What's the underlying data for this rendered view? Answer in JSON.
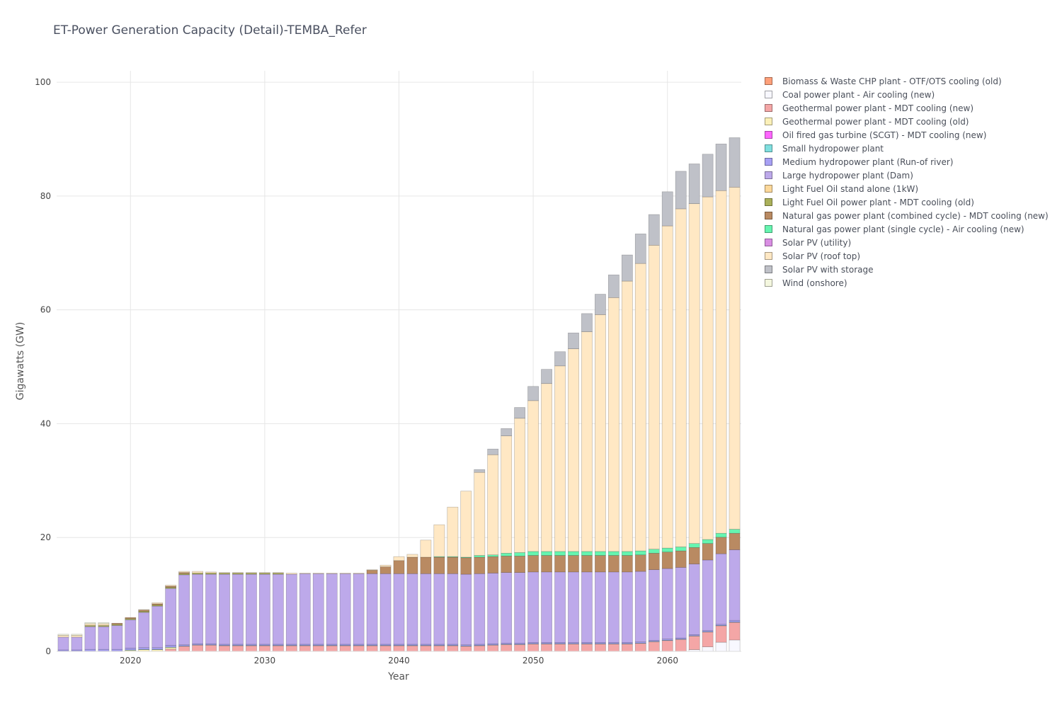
{
  "title": "ET-Power Generation Capacity (Detail)-TEMBA_Refer",
  "chart_data": {
    "type": "bar",
    "stacked": true,
    "title": "ET-Power Generation Capacity (Detail)-TEMBA_Refer",
    "xlabel": "Year",
    "ylabel": "Gigawatts (GW)",
    "xlim": [
      2014.5,
      2065.5
    ],
    "ylim": [
      0,
      102
    ],
    "x_ticks": [
      2020,
      2030,
      2040,
      2050,
      2060
    ],
    "y_ticks": [
      0,
      20,
      40,
      60,
      80,
      100
    ],
    "grid": true,
    "legend_position": "right",
    "years": [
      2015,
      2016,
      2017,
      2018,
      2019,
      2020,
      2021,
      2022,
      2023,
      2024,
      2025,
      2026,
      2027,
      2028,
      2029,
      2030,
      2031,
      2032,
      2033,
      2034,
      2035,
      2036,
      2037,
      2038,
      2039,
      2040,
      2041,
      2042,
      2043,
      2044,
      2045,
      2046,
      2047,
      2048,
      2049,
      2050,
      2051,
      2052,
      2053,
      2054,
      2055,
      2056,
      2057,
      2058,
      2059,
      2060,
      2061,
      2062,
      2063,
      2064,
      2065
    ],
    "series": [
      {
        "name": "Biomass & Waste CHP plant - OTF/OTS cooling (old)",
        "color": "#ffa07a",
        "values": [
          0,
          0,
          0,
          0,
          0,
          0,
          0,
          0,
          0,
          0,
          0,
          0,
          0,
          0,
          0,
          0,
          0,
          0,
          0,
          0,
          0,
          0,
          0,
          0,
          0,
          0,
          0,
          0,
          0,
          0,
          0,
          0,
          0,
          0,
          0,
          0,
          0,
          0,
          0,
          0,
          0,
          0,
          0,
          0,
          0,
          0,
          0,
          0,
          0,
          0,
          0
        ]
      },
      {
        "name": "Coal power plant - Air cooling (new)",
        "color": "#f8f8ff",
        "values": [
          0,
          0,
          0,
          0,
          0,
          0,
          0,
          0,
          0,
          0,
          0,
          0,
          0,
          0,
          0,
          0,
          0,
          0,
          0,
          0,
          0,
          0,
          0,
          0,
          0,
          0,
          0,
          0,
          0,
          0,
          0,
          0,
          0,
          0,
          0,
          0,
          0,
          0,
          0,
          0,
          0,
          0,
          0,
          0,
          0,
          0,
          0,
          0.3,
          0.8,
          1.6,
          2.0
        ]
      },
      {
        "name": "Geothermal power plant - MDT cooling (new)",
        "color": "#f4a6a6",
        "values": [
          0,
          0,
          0,
          0,
          0,
          0,
          0,
          0,
          0.4,
          0.9,
          1.1,
          1.1,
          1.0,
          1.0,
          1.0,
          1.0,
          1.0,
          1.0,
          1.0,
          1.0,
          1.0,
          1.0,
          1.0,
          1.0,
          1.0,
          1.0,
          1.0,
          1.0,
          1.0,
          1.0,
          0.9,
          1.0,
          1.1,
          1.2,
          1.2,
          1.3,
          1.3,
          1.3,
          1.3,
          1.3,
          1.3,
          1.3,
          1.3,
          1.4,
          1.7,
          1.9,
          2.1,
          2.4,
          2.6,
          2.9,
          3.1
        ]
      },
      {
        "name": "Geothermal power plant - MDT cooling (old)",
        "color": "#fbf0b8",
        "values": [
          0,
          0,
          0,
          0,
          0,
          0.2,
          0.3,
          0.3,
          0.3,
          0,
          0,
          0,
          0,
          0,
          0,
          0,
          0,
          0,
          0,
          0,
          0,
          0,
          0,
          0,
          0,
          0,
          0,
          0,
          0,
          0,
          0,
          0,
          0,
          0,
          0,
          0,
          0,
          0,
          0,
          0,
          0,
          0,
          0,
          0,
          0,
          0,
          0,
          0,
          0,
          0,
          0
        ]
      },
      {
        "name": "Oil fired gas turbine (SCGT) - MDT cooling (new)",
        "color": "#ff66ff",
        "values": [
          0,
          0,
          0,
          0,
          0,
          0,
          0,
          0,
          0,
          0,
          0,
          0,
          0,
          0,
          0,
          0,
          0,
          0,
          0,
          0,
          0,
          0,
          0,
          0,
          0,
          0,
          0,
          0,
          0,
          0,
          0,
          0,
          0,
          0,
          0,
          0,
          0,
          0,
          0,
          0,
          0,
          0,
          0,
          0,
          0,
          0,
          0,
          0,
          0,
          0,
          0
        ]
      },
      {
        "name": "Small hydropower plant",
        "color": "#7fdfdf",
        "values": [
          0.05,
          0.05,
          0.05,
          0.05,
          0.05,
          0.05,
          0.05,
          0.05,
          0.05,
          0.05,
          0.05,
          0.05,
          0.05,
          0.05,
          0.05,
          0.05,
          0.05,
          0.05,
          0.05,
          0.05,
          0.05,
          0.05,
          0.05,
          0.05,
          0.05,
          0.05,
          0.05,
          0.05,
          0.05,
          0.05,
          0.05,
          0.05,
          0.05,
          0.05,
          0.05,
          0.05,
          0.05,
          0.05,
          0.05,
          0.05,
          0.05,
          0.05,
          0.05,
          0.05,
          0.05,
          0.05,
          0.05,
          0.05,
          0.05,
          0.05,
          0.05
        ]
      },
      {
        "name": "Medium hydropower plant (Run-of river)",
        "color": "#a7a0f4",
        "values": [
          0.2,
          0.2,
          0.3,
          0.3,
          0.3,
          0.3,
          0.3,
          0.3,
          0.3,
          0.2,
          0.2,
          0.2,
          0.2,
          0.2,
          0.2,
          0.2,
          0.2,
          0.2,
          0.2,
          0.2,
          0.2,
          0.2,
          0.2,
          0.2,
          0.2,
          0.2,
          0.2,
          0.2,
          0.2,
          0.2,
          0.2,
          0.2,
          0.2,
          0.2,
          0.2,
          0.2,
          0.2,
          0.2,
          0.2,
          0.2,
          0.2,
          0.2,
          0.2,
          0.2,
          0.2,
          0.2,
          0.2,
          0.2,
          0.2,
          0.2,
          0.3
        ]
      },
      {
        "name": "Large hydropower plant (Dam)",
        "color": "#bda9ea",
        "values": [
          2.25,
          2.25,
          4.0,
          4.0,
          4.2,
          5.0,
          6.2,
          7.3,
          10.0,
          12.3,
          12.2,
          12.2,
          12.3,
          12.3,
          12.3,
          12.3,
          12.3,
          12.3,
          12.4,
          12.4,
          12.4,
          12.4,
          12.4,
          12.4,
          12.4,
          12.4,
          12.4,
          12.4,
          12.4,
          12.4,
          12.4,
          12.4,
          12.4,
          12.4,
          12.4,
          12.4,
          12.4,
          12.4,
          12.4,
          12.4,
          12.4,
          12.4,
          12.4,
          12.4,
          12.4,
          12.4,
          12.4,
          12.4,
          12.4,
          12.4,
          12.4
        ]
      },
      {
        "name": "Light Fuel Oil stand alone (1kW)",
        "color": "#fcd89a",
        "values": [
          0,
          0,
          0,
          0,
          0,
          0,
          0,
          0,
          0,
          0,
          0,
          0,
          0,
          0,
          0,
          0,
          0,
          0,
          0,
          0,
          0,
          0,
          0,
          0,
          0,
          0,
          0,
          0,
          0,
          0,
          0,
          0,
          0,
          0,
          0,
          0,
          0,
          0,
          0,
          0,
          0,
          0,
          0,
          0,
          0,
          0,
          0,
          0,
          0,
          0,
          0
        ]
      },
      {
        "name": "Light Fuel Oil power plant - MDT cooling (old)",
        "color": "#aab05a",
        "values": [
          0,
          0,
          0.2,
          0.2,
          0.2,
          0.2,
          0.2,
          0.2,
          0.2,
          0.2,
          0.2,
          0.2,
          0.2,
          0.2,
          0.2,
          0.2,
          0.2,
          0,
          0,
          0,
          0,
          0,
          0,
          0,
          0,
          0,
          0,
          0,
          0,
          0,
          0,
          0,
          0,
          0,
          0,
          0,
          0,
          0,
          0,
          0,
          0,
          0,
          0,
          0,
          0,
          0,
          0,
          0,
          0,
          0,
          0
        ]
      },
      {
        "name": "Natural gas power plant (combined cycle) - MDT cooling (new)",
        "color": "#b98a62",
        "values": [
          0,
          0,
          0,
          0,
          0.2,
          0.2,
          0.2,
          0.2,
          0.2,
          0.2,
          0,
          0,
          0,
          0,
          0,
          0,
          0,
          0,
          0,
          0,
          0,
          0,
          0,
          0.6,
          1.2,
          2.3,
          2.9,
          2.9,
          2.9,
          2.9,
          2.9,
          2.9,
          2.9,
          2.9,
          2.9,
          2.9,
          2.9,
          2.9,
          2.9,
          2.9,
          2.9,
          2.9,
          2.9,
          2.9,
          2.9,
          2.9,
          2.9,
          2.9,
          2.9,
          2.9,
          2.9
        ]
      },
      {
        "name": "Natural gas power plant (single cycle) - Air cooling (new)",
        "color": "#66f5b0",
        "values": [
          0,
          0,
          0,
          0,
          0,
          0,
          0,
          0,
          0,
          0,
          0,
          0,
          0,
          0,
          0,
          0,
          0,
          0,
          0,
          0,
          0,
          0,
          0,
          0,
          0,
          0,
          0,
          0,
          0.1,
          0.1,
          0.1,
          0.3,
          0.3,
          0.5,
          0.6,
          0.7,
          0.7,
          0.7,
          0.7,
          0.7,
          0.7,
          0.7,
          0.7,
          0.7,
          0.7,
          0.7,
          0.7,
          0.7,
          0.7,
          0.7,
          0.7
        ]
      },
      {
        "name": "Solar PV (utility)",
        "color": "#d98ee3",
        "values": [
          0,
          0,
          0,
          0,
          0,
          0,
          0,
          0,
          0,
          0,
          0,
          0,
          0,
          0,
          0,
          0,
          0,
          0,
          0,
          0,
          0,
          0,
          0,
          0,
          0,
          0,
          0,
          0,
          0,
          0,
          0,
          0,
          0,
          0,
          0,
          0,
          0,
          0,
          0,
          0,
          0,
          0,
          0,
          0,
          0,
          0,
          0,
          0,
          0,
          0,
          0
        ]
      },
      {
        "name": "Solar PV (roof top)",
        "color": "#ffe8c4",
        "values": [
          0.3,
          0.3,
          0.3,
          0.3,
          0,
          0,
          0.1,
          0.2,
          0.2,
          0.2,
          0.3,
          0.2,
          0.1,
          0.1,
          0.1,
          0.1,
          0.1,
          0.2,
          0.1,
          0.1,
          0.1,
          0.1,
          0.1,
          0.1,
          0.3,
          0.7,
          0.5,
          3.0,
          5.6,
          8.7,
          11.6,
          14.6,
          17.6,
          20.6,
          23.6,
          26.5,
          29.5,
          32.6,
          35.6,
          38.6,
          41.6,
          44.6,
          47.5,
          50.5,
          53.4,
          56.6,
          59.4,
          59.7,
          60.2,
          60.2,
          60.1
        ]
      },
      {
        "name": "Solar PV with storage",
        "color": "#bfc1c8",
        "values": [
          0,
          0,
          0,
          0,
          0,
          0,
          0,
          0,
          0,
          0,
          0,
          0,
          0,
          0,
          0,
          0,
          0,
          0,
          0,
          0,
          0,
          0,
          0,
          0,
          0,
          0,
          0,
          0,
          0,
          0,
          0,
          0.5,
          1.0,
          1.3,
          1.9,
          2.5,
          2.5,
          2.5,
          2.8,
          3.2,
          3.6,
          4.0,
          4.6,
          5.2,
          5.4,
          6.0,
          6.6,
          7.0,
          7.5,
          8.2,
          8.7
        ]
      },
      {
        "name": "Wind (onshore)",
        "color": "#f4f7df",
        "values": [
          0.2,
          0.2,
          0.2,
          0.2,
          0,
          0,
          0,
          0,
          0,
          0,
          0,
          0,
          0,
          0,
          0,
          0,
          0,
          0,
          0,
          0,
          0,
          0,
          0,
          0,
          0,
          0,
          0,
          0,
          0,
          0,
          0,
          0,
          0,
          0,
          0,
          0,
          0,
          0,
          0,
          0,
          0,
          0,
          0,
          0,
          0,
          0,
          0,
          0,
          0,
          0,
          0
        ]
      }
    ]
  }
}
